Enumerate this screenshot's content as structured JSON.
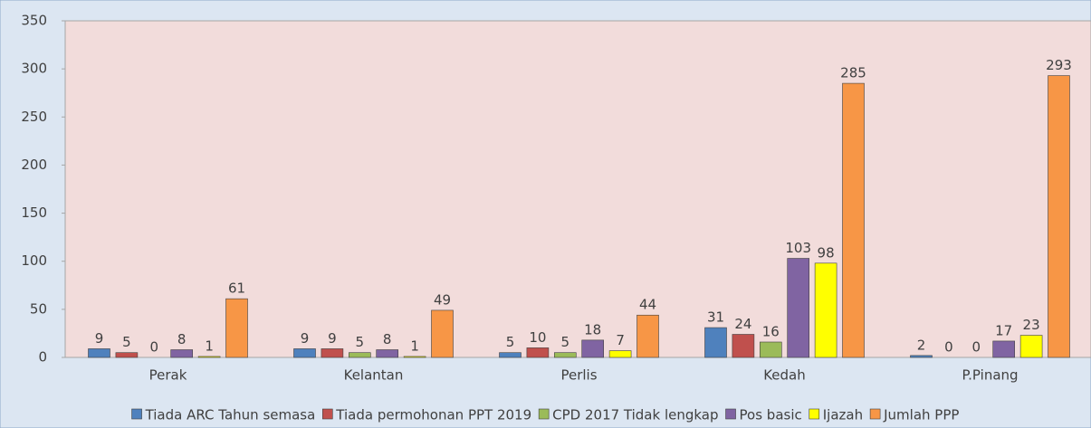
{
  "chart_data": {
    "type": "bar",
    "categories": [
      "Perak",
      "Kelantan",
      "Perlis",
      "Kedah",
      "P.Pinang"
    ],
    "series": [
      {
        "name": "Tiada ARC Tahun semasa",
        "color": "#4f81bd",
        "values": [
          9,
          9,
          5,
          31,
          2
        ]
      },
      {
        "name": "Tiada permohonan PPT 2019",
        "color": "#c0504d",
        "values": [
          5,
          9,
          10,
          24,
          0
        ]
      },
      {
        "name": "CPD 2017 Tidak lengkap",
        "color": "#9bbb59",
        "values": [
          0,
          5,
          5,
          16,
          0
        ]
      },
      {
        "name": "Pos basic",
        "color": "#8064a2",
        "values": [
          8,
          8,
          18,
          103,
          17
        ]
      },
      {
        "name": "Ijazah",
        "color": "#ffff00",
        "values": [
          1,
          1,
          7,
          98,
          23
        ]
      },
      {
        "name": "Jumlah PPP",
        "color": "#f79646",
        "values": [
          61,
          49,
          44,
          285,
          293
        ]
      }
    ],
    "ylim": [
      0,
      350
    ],
    "yticks": [
      0,
      50,
      100,
      150,
      200,
      250,
      300,
      350
    ],
    "legend": "bottom"
  }
}
